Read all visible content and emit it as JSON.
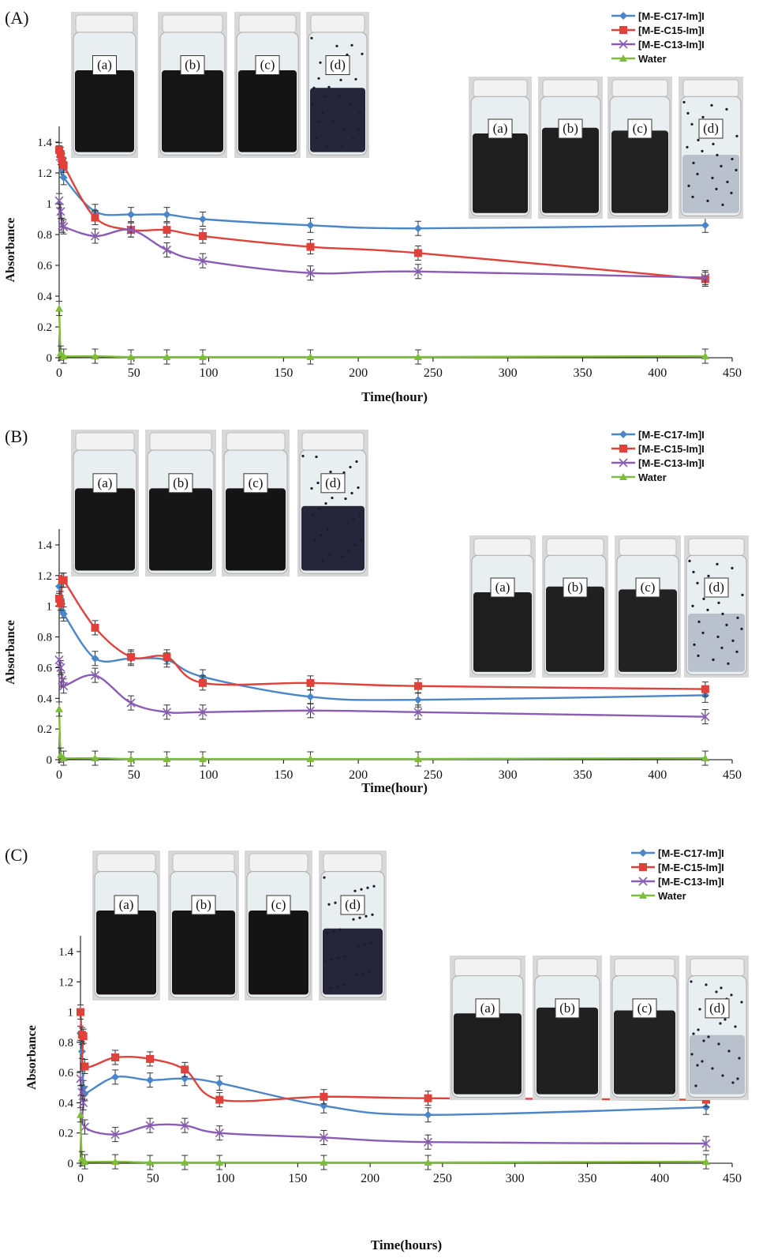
{
  "figure": {
    "panels": [
      {
        "label": "(A)",
        "photo_labels_top": [
          "(a)",
          "(b)",
          "(c)",
          "(d)"
        ],
        "photo_labels_right": [
          "(a)",
          "(b)",
          "(c)",
          "(d)"
        ]
      },
      {
        "label": "(B)",
        "photo_labels_top": [
          "(a)",
          "(b)",
          "(c)",
          "(d)"
        ],
        "photo_labels_right": [
          "(a)",
          "(b)",
          "(c)",
          "(d)"
        ]
      },
      {
        "label": "(C)",
        "photo_labels_top": [
          "(a)",
          "(b)",
          "(c)",
          "(d)"
        ],
        "photo_labels_right": [
          "(a)",
          "(b)",
          "(c)",
          "(d)"
        ]
      }
    ]
  },
  "colors": {
    "C17": "#4a86c8",
    "C15": "#e0413b",
    "C13": "#8a5cb8",
    "Water": "#7dbd3b"
  },
  "chart_data": [
    {
      "type": "line",
      "xlabel": "Time(hour)",
      "ylabel": "Absorbance",
      "xlim": [
        0,
        450
      ],
      "ylim": [
        0,
        1.4
      ],
      "xticks": [
        0,
        50,
        100,
        150,
        200,
        250,
        300,
        350,
        400,
        450
      ],
      "yticks": [
        0,
        0.2,
        0.4,
        0.6,
        0.8,
        1,
        1.2,
        1.4
      ],
      "legend": "top-right",
      "grid": false,
      "series": [
        {
          "name": "[M-E-C17-Im]I",
          "marker": "diamond",
          "x": [
            0,
            1,
            2,
            3,
            24,
            48,
            72,
            96,
            168,
            240,
            432
          ],
          "y": [
            1.33,
            1.3,
            1.22,
            1.17,
            0.95,
            0.93,
            0.93,
            0.9,
            0.86,
            0.84,
            0.86
          ]
        },
        {
          "name": "[M-E-C15-Im]I",
          "marker": "square",
          "x": [
            0,
            1,
            2,
            3,
            24,
            48,
            72,
            96,
            168,
            240,
            432
          ],
          "y": [
            1.35,
            1.32,
            1.28,
            1.25,
            0.91,
            0.83,
            0.83,
            0.79,
            0.72,
            0.68,
            0.51
          ]
        },
        {
          "name": "[M-E-C13-Im]I",
          "marker": "x",
          "x": [
            0,
            1,
            2,
            3,
            24,
            48,
            72,
            96,
            168,
            240,
            432
          ],
          "y": [
            1.02,
            0.95,
            0.86,
            0.85,
            0.79,
            0.83,
            0.7,
            0.63,
            0.55,
            0.56,
            0.52
          ]
        },
        {
          "name": "Water",
          "marker": "triangle",
          "x": [
            0,
            1,
            3,
            24,
            48,
            72,
            96,
            168,
            240,
            432
          ],
          "y": [
            0.32,
            0.03,
            0.01,
            0.01,
            0.005,
            0.005,
            0.005,
            0.005,
            0.005,
            0.01
          ]
        }
      ]
    },
    {
      "type": "line",
      "xlabel": "Time(hour)",
      "ylabel": "Absorbance",
      "xlim": [
        0,
        450
      ],
      "ylim": [
        0,
        1.4
      ],
      "xticks": [
        0,
        50,
        100,
        150,
        200,
        250,
        300,
        350,
        400,
        450
      ],
      "yticks": [
        0,
        0.2,
        0.4,
        0.6,
        0.8,
        1,
        1.2,
        1.4
      ],
      "legend": "top-right",
      "grid": false,
      "series": [
        {
          "name": "[M-E-C17-Im]I",
          "marker": "diamond",
          "x": [
            0,
            1,
            2,
            3,
            24,
            48,
            72,
            96,
            168,
            240,
            432
          ],
          "y": [
            1.13,
            1.05,
            0.97,
            0.95,
            0.66,
            0.66,
            0.65,
            0.54,
            0.41,
            0.39,
            0.42
          ]
        },
        {
          "name": "[M-E-C15-Im]I",
          "marker": "square",
          "x": [
            0,
            1,
            2,
            3,
            24,
            48,
            72,
            96,
            168,
            240,
            432
          ],
          "y": [
            1.05,
            1.02,
            1.17,
            1.17,
            0.86,
            0.67,
            0.67,
            0.5,
            0.5,
            0.48,
            0.46
          ]
        },
        {
          "name": "[M-E-C13-Im]I",
          "marker": "x",
          "x": [
            0,
            1,
            2,
            3,
            24,
            48,
            72,
            96,
            168,
            240,
            432
          ],
          "y": [
            0.65,
            0.6,
            0.52,
            0.48,
            0.55,
            0.37,
            0.31,
            0.31,
            0.32,
            0.31,
            0.28
          ]
        },
        {
          "name": "Water",
          "marker": "triangle",
          "x": [
            0,
            1,
            3,
            24,
            48,
            72,
            96,
            168,
            240,
            432
          ],
          "y": [
            0.33,
            0.03,
            0.01,
            0.01,
            0.005,
            0.005,
            0.005,
            0.005,
            0.005,
            0.01
          ]
        }
      ]
    },
    {
      "type": "line",
      "xlabel": "Time(hours)",
      "ylabel": "Absorbance",
      "xlim": [
        0,
        450
      ],
      "ylim": [
        0,
        1.4
      ],
      "xticks": [
        0,
        50,
        100,
        150,
        200,
        250,
        300,
        350,
        400,
        450
      ],
      "yticks": [
        0,
        0.2,
        0.4,
        0.6,
        0.8,
        1,
        1.2,
        1.4
      ],
      "legend": "top-right",
      "grid": false,
      "series": [
        {
          "name": "[M-E-C17-Im]I",
          "marker": "diamond",
          "x": [
            0,
            1,
            2,
            3,
            24,
            48,
            72,
            96,
            168,
            240,
            432
          ],
          "y": [
            0.86,
            0.74,
            0.5,
            0.46,
            0.57,
            0.55,
            0.56,
            0.53,
            0.38,
            0.32,
            0.37
          ]
        },
        {
          "name": "[M-E-C15-Im]I",
          "marker": "square",
          "x": [
            0,
            1,
            2,
            3,
            24,
            48,
            72,
            96,
            168,
            240,
            432
          ],
          "y": [
            1.0,
            0.85,
            0.84,
            0.64,
            0.7,
            0.69,
            0.62,
            0.42,
            0.44,
            0.43,
            0.42
          ]
        },
        {
          "name": "[M-E-C13-Im]I",
          "marker": "x",
          "x": [
            0,
            1,
            2,
            3,
            24,
            48,
            72,
            96,
            168,
            240,
            432
          ],
          "y": [
            0.56,
            0.47,
            0.4,
            0.24,
            0.19,
            0.25,
            0.25,
            0.2,
            0.17,
            0.14,
            0.13
          ]
        },
        {
          "name": "Water",
          "marker": "triangle",
          "x": [
            0,
            1,
            3,
            24,
            48,
            72,
            96,
            168,
            240,
            432
          ],
          "y": [
            0.32,
            0.03,
            0.01,
            0.01,
            0.005,
            0.005,
            0.005,
            0.005,
            0.005,
            0.01
          ]
        }
      ]
    }
  ]
}
